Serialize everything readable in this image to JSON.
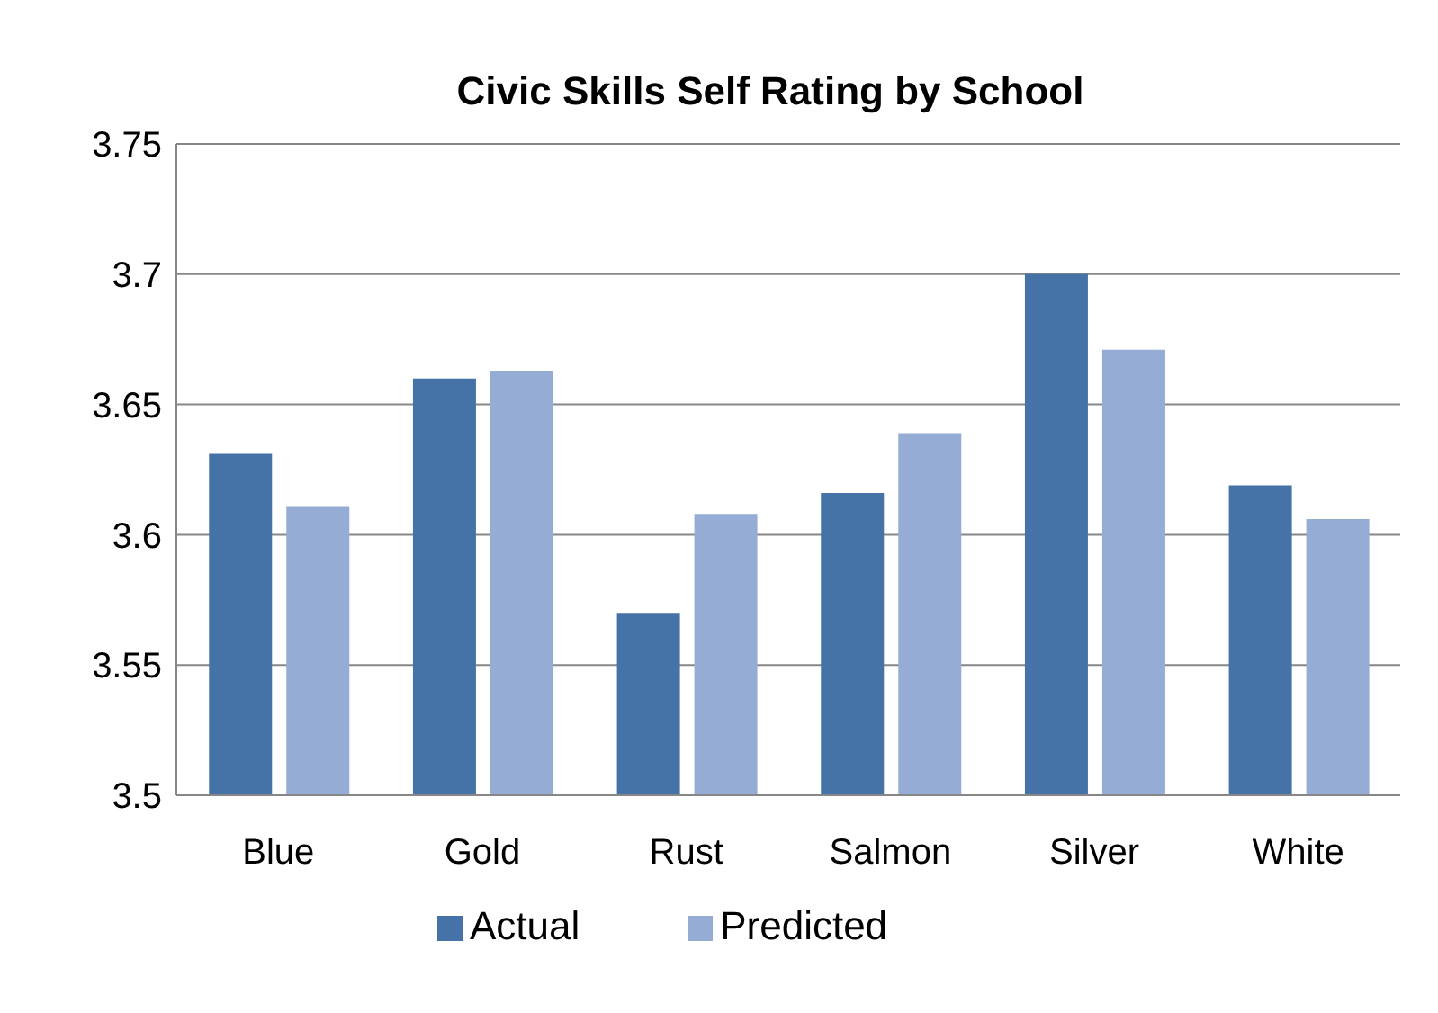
{
  "chart_data": {
    "type": "bar",
    "title": "Civic Skills Self Rating by School",
    "categories": [
      "Blue",
      "Gold",
      "Rust",
      "Salmon",
      "Silver",
      "White"
    ],
    "series": [
      {
        "name": "Actual",
        "color": "#4572a7",
        "values": [
          3.631,
          3.66,
          3.57,
          3.616,
          3.7,
          3.619
        ]
      },
      {
        "name": "Predicted",
        "color": "#95acd5",
        "values": [
          3.611,
          3.663,
          3.608,
          3.639,
          3.671,
          3.606
        ]
      }
    ],
    "ylim": [
      3.5,
      3.75
    ],
    "yticks": [
      3.5,
      3.55,
      3.6,
      3.65,
      3.7,
      3.75
    ],
    "grid": "y",
    "legend": "bottom"
  }
}
